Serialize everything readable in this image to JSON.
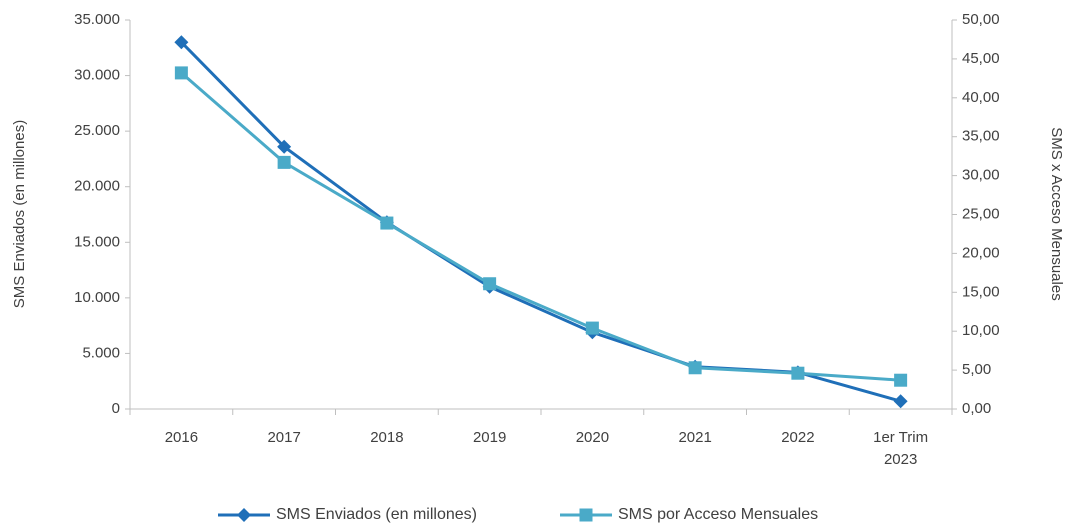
{
  "chart_data": {
    "type": "line",
    "y_label": "SMS Enviados (en millones)",
    "y2_label": "SMS x Acceso Mensuales",
    "categories": [
      "2016",
      "2017",
      "2018",
      "2019",
      "2020",
      "2021",
      "2022",
      "1er Trim 2023"
    ],
    "series": [
      {
        "name": "SMS Enviados (en millones)",
        "color": "#1f6fb8",
        "marker": "diamond",
        "values": [
          33000,
          23600,
          16800,
          11000,
          6900,
          3800,
          3300,
          700
        ]
      },
      {
        "name": "SMS por Acceso Mensuales",
        "color": "#4aaac8",
        "marker": "square",
        "axis": "y2",
        "values": [
          43.2,
          31.7,
          23.9,
          16.1,
          10.4,
          5.3,
          4.6,
          3.7
        ]
      }
    ],
    "ylim": [
      0,
      35000
    ],
    "yticks": [
      0,
      {
        "value": 5000,
        "label": "5.000"
      },
      {
        "value": 10000,
        "label": "10.000"
      },
      {
        "value": 15000,
        "label": "15.000"
      },
      {
        "value": 20000,
        "label": "20.000"
      },
      {
        "value": 25000,
        "label": "25.000"
      },
      {
        "value": 30000,
        "label": "30.000"
      },
      {
        "value": 35000,
        "label": "35.000"
      }
    ],
    "y2lim": [
      0,
      50
    ],
    "y2ticks": [
      {
        "value": 0,
        "label": "0,00"
      },
      {
        "value": 5,
        "label": "5,00"
      },
      {
        "value": 10,
        "label": "10,00"
      },
      {
        "value": 15,
        "label": "15,00"
      },
      {
        "value": 20,
        "label": "20,00"
      },
      {
        "value": 25,
        "label": "25,00"
      },
      {
        "value": 30,
        "label": "30,00"
      },
      {
        "value": 35,
        "label": "35,00"
      },
      {
        "value": 40,
        "label": "40,00"
      },
      {
        "value": 45,
        "label": "45,00"
      },
      {
        "value": 50,
        "label": "50,00"
      }
    ],
    "grid": false,
    "legend": "bottom"
  }
}
